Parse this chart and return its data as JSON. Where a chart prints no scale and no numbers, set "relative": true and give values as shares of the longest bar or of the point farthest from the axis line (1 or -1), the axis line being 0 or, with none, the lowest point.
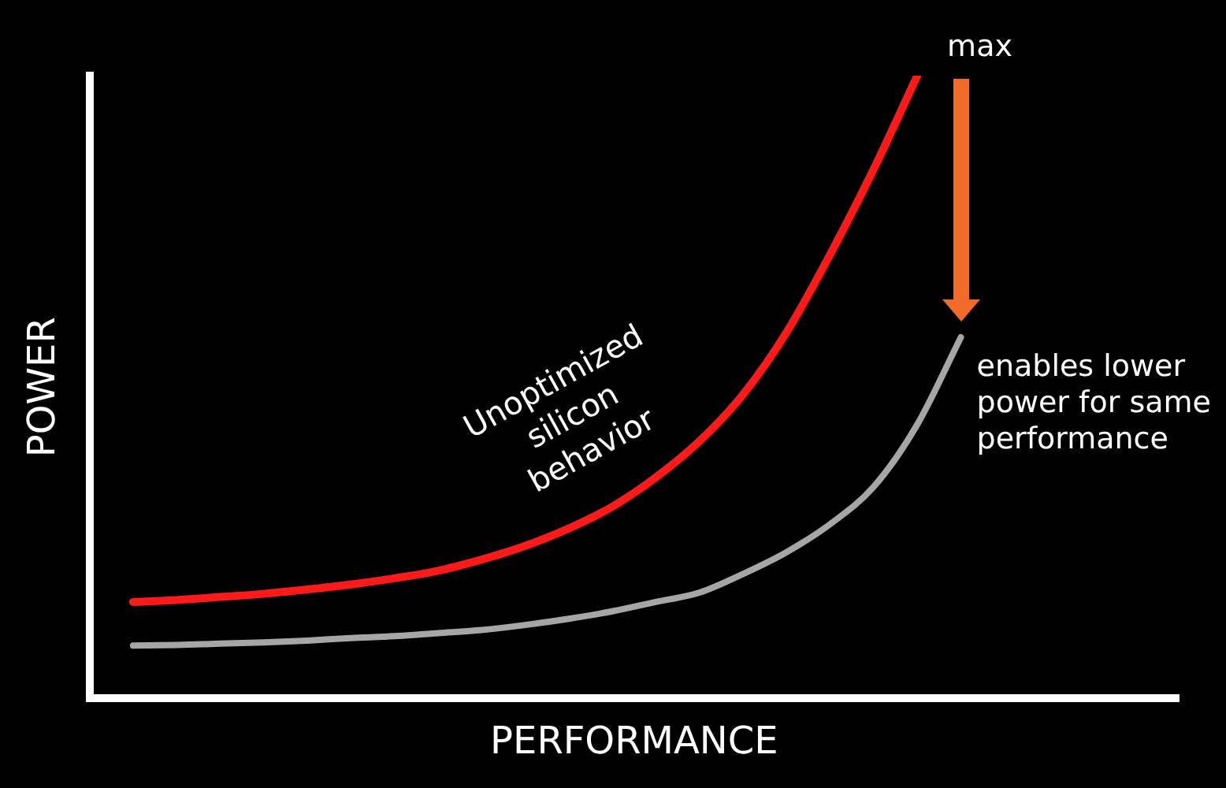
{
  "chart_data": {
    "type": "line",
    "relative": true,
    "xlabel": "PERFORMANCE",
    "ylabel": "POWER",
    "grid": false,
    "legend": false,
    "marker": "none",
    "line_style": "solid",
    "categories": [
      null,
      null,
      null,
      null,
      null,
      null,
      null,
      null,
      null,
      null,
      null,
      null,
      null,
      null,
      null,
      null,
      null,
      null,
      null,
      null,
      null,
      null,
      null,
      null,
      null,
      null
    ],
    "series": [
      {
        "name": "Unoptimized silicon behavior",
        "color": "#ff1a1a",
        "values": [
          null,
          0.155,
          0.158,
          0.163,
          0.168,
          0.175,
          0.183,
          0.193,
          0.205,
          0.223,
          0.245,
          0.273,
          0.308,
          0.355,
          0.413,
          0.488,
          0.588,
          0.713,
          0.85,
          1.0,
          null,
          null,
          null,
          null,
          null,
          null
        ]
      },
      {
        "color": "#a6a6a6",
        "values": [
          null,
          0.085,
          0.086,
          0.088,
          0.09,
          0.093,
          0.097,
          0.1,
          0.105,
          0.11,
          0.118,
          0.128,
          0.14,
          0.155,
          0.17,
          0.2,
          0.235,
          0.28,
          0.34,
          0.44,
          0.58,
          null,
          null,
          null,
          null,
          null
        ]
      }
    ],
    "annotations": [
      "max",
      "enables lower power for same performance"
    ]
  }
}
